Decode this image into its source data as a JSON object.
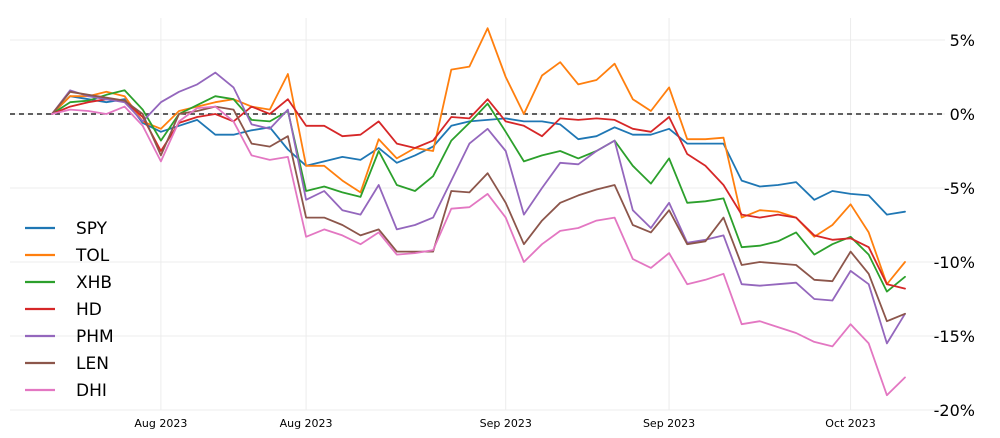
{
  "chart_data": {
    "type": "line",
    "title": "",
    "xlabel": "",
    "ylabel": "",
    "ylim": [
      -20,
      7
    ],
    "y_unit": "%",
    "y_ticks": [
      5,
      0,
      -5,
      -10,
      -15,
      -20
    ],
    "y_tick_labels": [
      "5%",
      "0%",
      "-5%",
      "-10%",
      "-15%",
      "-20%"
    ],
    "x_tick_labels": [
      "Aug 2023",
      "Aug 2023",
      "Sep 2023",
      "Sep 2023",
      "Oct 2023"
    ],
    "x_tick_index": [
      6,
      14,
      25,
      34,
      44
    ],
    "n_points": 48,
    "reference_line": 0,
    "grid": true,
    "legend_position": "left",
    "series": [
      {
        "name": "SPY",
        "color": "#1f77b4",
        "values": [
          0.0,
          1.2,
          1.0,
          0.8,
          1.0,
          -0.6,
          -1.2,
          -0.8,
          -0.4,
          -1.4,
          -1.4,
          -1.1,
          -0.9,
          -2.4,
          -3.5,
          -3.2,
          -2.9,
          -3.1,
          -2.3,
          -3.3,
          -2.8,
          -2.2,
          -0.8,
          -0.5,
          -0.4,
          -0.3,
          -0.5,
          -0.5,
          -0.7,
          -1.7,
          -1.5,
          -0.9,
          -1.4,
          -1.4,
          -1.0,
          -2.0,
          -2.0,
          -2.0,
          -4.5,
          -4.9,
          -4.8,
          -4.6,
          -5.8,
          -5.2,
          -5.4,
          -5.5,
          -6.8,
          -6.6
        ]
      },
      {
        "name": "TOL",
        "color": "#ff7f0e",
        "values": [
          0.0,
          1.2,
          1.2,
          1.5,
          1.2,
          -0.5,
          -1.0,
          0.2,
          0.5,
          0.8,
          1.0,
          0.5,
          0.3,
          2.7,
          -3.5,
          -3.5,
          -4.5,
          -5.3,
          -1.7,
          -3.0,
          -2.3,
          -2.5,
          3.0,
          3.2,
          5.8,
          2.5,
          0.0,
          2.6,
          3.5,
          2.0,
          2.3,
          3.4,
          1.0,
          0.2,
          1.8,
          -1.7,
          -1.7,
          -1.6,
          -7.0,
          -6.5,
          -6.6,
          -7.0,
          -8.3,
          -7.5,
          -6.1,
          -8.0,
          -11.5,
          -10.0
        ]
      },
      {
        "name": "XHB",
        "color": "#2ca02c",
        "values": [
          0.0,
          0.8,
          0.9,
          1.3,
          1.6,
          0.3,
          -1.8,
          0.0,
          0.6,
          1.2,
          1.0,
          -0.4,
          -0.5,
          0.2,
          -5.2,
          -4.9,
          -5.3,
          -5.6,
          -2.5,
          -4.8,
          -5.2,
          -4.2,
          -1.8,
          -0.6,
          0.7,
          -1.2,
          -3.2,
          -2.8,
          -2.5,
          -3.0,
          -2.5,
          -1.8,
          -3.5,
          -4.7,
          -3.0,
          -6.0,
          -5.9,
          -5.7,
          -9.0,
          -8.9,
          -8.6,
          -8.0,
          -9.5,
          -8.8,
          -8.3,
          -9.5,
          -12.0,
          -11.0
        ]
      },
      {
        "name": "HD",
        "color": "#d62728",
        "values": [
          0.0,
          0.5,
          0.8,
          1.0,
          0.9,
          -0.2,
          -2.5,
          -0.6,
          -0.2,
          0.0,
          -0.5,
          0.5,
          0.0,
          1.0,
          -0.8,
          -0.8,
          -1.5,
          -1.4,
          -0.5,
          -2.0,
          -2.3,
          -1.8,
          -0.2,
          -0.3,
          1.0,
          -0.5,
          -0.8,
          -1.5,
          -0.3,
          -0.4,
          -0.3,
          -0.4,
          -1.0,
          -1.2,
          -0.2,
          -2.7,
          -3.5,
          -4.8,
          -6.8,
          -7.0,
          -6.8,
          -7.0,
          -8.2,
          -8.5,
          -8.4,
          -9.0,
          -11.5,
          -11.8
        ]
      },
      {
        "name": "PHM",
        "color": "#9467bd",
        "values": [
          0.0,
          1.6,
          1.2,
          1.0,
          0.8,
          -0.5,
          0.8,
          1.5,
          2.0,
          2.8,
          1.8,
          -0.7,
          -1.0,
          0.3,
          -5.8,
          -5.2,
          -6.5,
          -6.8,
          -4.8,
          -7.8,
          -7.5,
          -7.0,
          -4.5,
          -2.0,
          -1.0,
          -2.5,
          -6.8,
          -5.0,
          -3.3,
          -3.4,
          -2.5,
          -1.8,
          -6.5,
          -7.7,
          -6.0,
          -8.7,
          -8.5,
          -8.2,
          -11.5,
          -11.6,
          -11.5,
          -11.4,
          -12.5,
          -12.6,
          -10.6,
          -11.5,
          -15.5,
          -13.5
        ]
      },
      {
        "name": "LEN",
        "color": "#8c564b",
        "values": [
          0.0,
          1.5,
          1.3,
          1.1,
          0.9,
          0.0,
          -2.8,
          0.0,
          0.2,
          0.5,
          0.3,
          -2.0,
          -2.2,
          -1.5,
          -7.0,
          -7.0,
          -7.5,
          -8.2,
          -7.8,
          -9.3,
          -9.3,
          -9.3,
          -5.2,
          -5.3,
          -4.0,
          -6.0,
          -8.8,
          -7.2,
          -6.0,
          -5.5,
          -5.1,
          -4.8,
          -7.5,
          -8.0,
          -6.5,
          -8.8,
          -8.6,
          -7.0,
          -10.2,
          -10.0,
          -10.1,
          -10.2,
          -11.2,
          -11.3,
          -9.3,
          -10.8,
          -14.0,
          -13.5
        ]
      },
      {
        "name": "DHI",
        "color": "#e377c2",
        "values": [
          0.0,
          0.3,
          0.2,
          0.0,
          0.5,
          -0.8,
          -3.2,
          -0.5,
          0.4,
          0.5,
          -0.5,
          -2.8,
          -3.1,
          -2.9,
          -8.3,
          -7.8,
          -8.2,
          -8.8,
          -8.0,
          -9.5,
          -9.4,
          -9.2,
          -6.4,
          -6.3,
          -5.4,
          -7.0,
          -10.0,
          -8.8,
          -7.9,
          -7.7,
          -7.2,
          -7.0,
          -9.8,
          -10.4,
          -9.4,
          -11.5,
          -11.2,
          -10.8,
          -14.2,
          -14.0,
          -14.4,
          -14.8,
          -15.4,
          -15.7,
          -14.2,
          -15.5,
          -19.0,
          -17.8
        ]
      }
    ]
  }
}
